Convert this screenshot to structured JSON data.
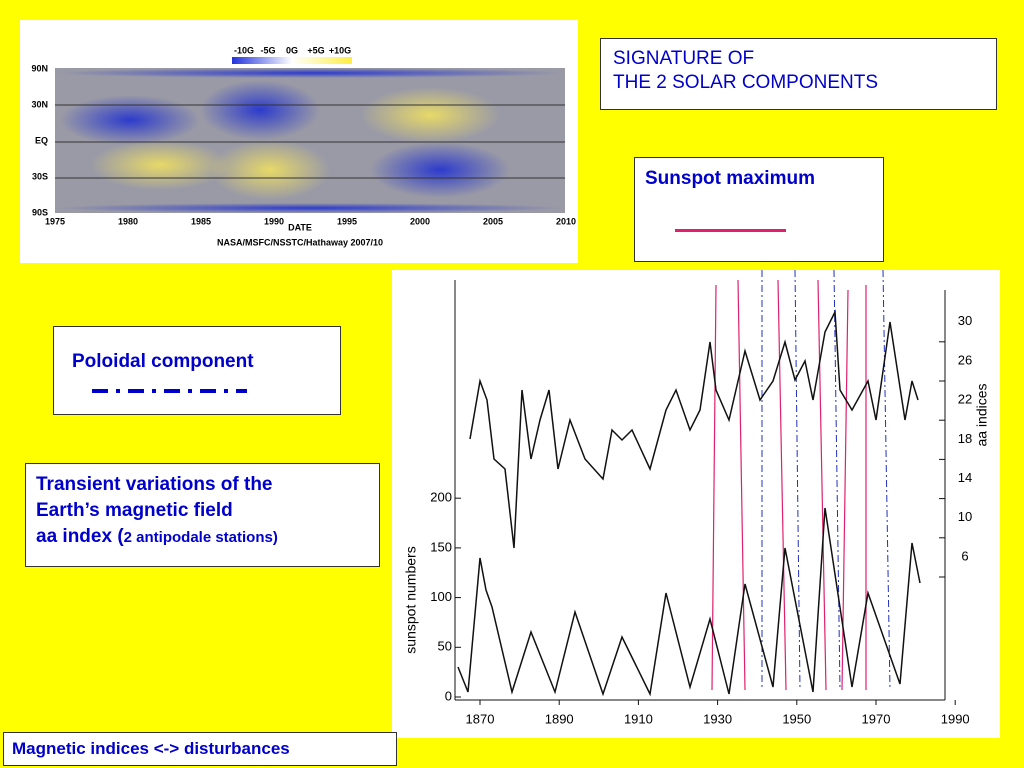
{
  "title": [
    "SIGNATURE OF",
    "THE 2 SOLAR COMPONENTS"
  ],
  "sunspot_legend": "Sunspot maximum",
  "poloidal_legend": "Poloidal component",
  "transient": {
    "lines": [
      "Transient variations of the",
      "Earth’s magnetic field"
    ],
    "aa": "aa index (",
    "aa_note": "2 antipodale stations)"
  },
  "footer": "Magnetic indices <-> disturbances",
  "butterfly": {
    "colorbar": [
      "-10G",
      "-5G",
      "0G",
      "+5G",
      "+10G"
    ],
    "latitudes": [
      "90N",
      "30N",
      "EQ",
      "30S",
      "90S"
    ],
    "years": [
      "1975",
      "1980",
      "1985",
      "1990",
      "1995",
      "2000",
      "2005",
      "2010"
    ],
    "xlabel": "DATE",
    "credit": "NASA/MSFC/NSSTC/Hathaway 2007/10"
  },
  "sunspot_plot": {
    "x_ticks": [
      "1870",
      "1890",
      "1910",
      "1930",
      "1950",
      "1970",
      "1990"
    ],
    "y_ticks": [
      "0",
      "50",
      "100",
      "150",
      "200"
    ],
    "y_label": "sunspot numbers",
    "y2_ticks": [
      "6",
      "10",
      "14",
      "18",
      "22",
      "26",
      "30"
    ],
    "y2_label": "aa indices"
  }
}
